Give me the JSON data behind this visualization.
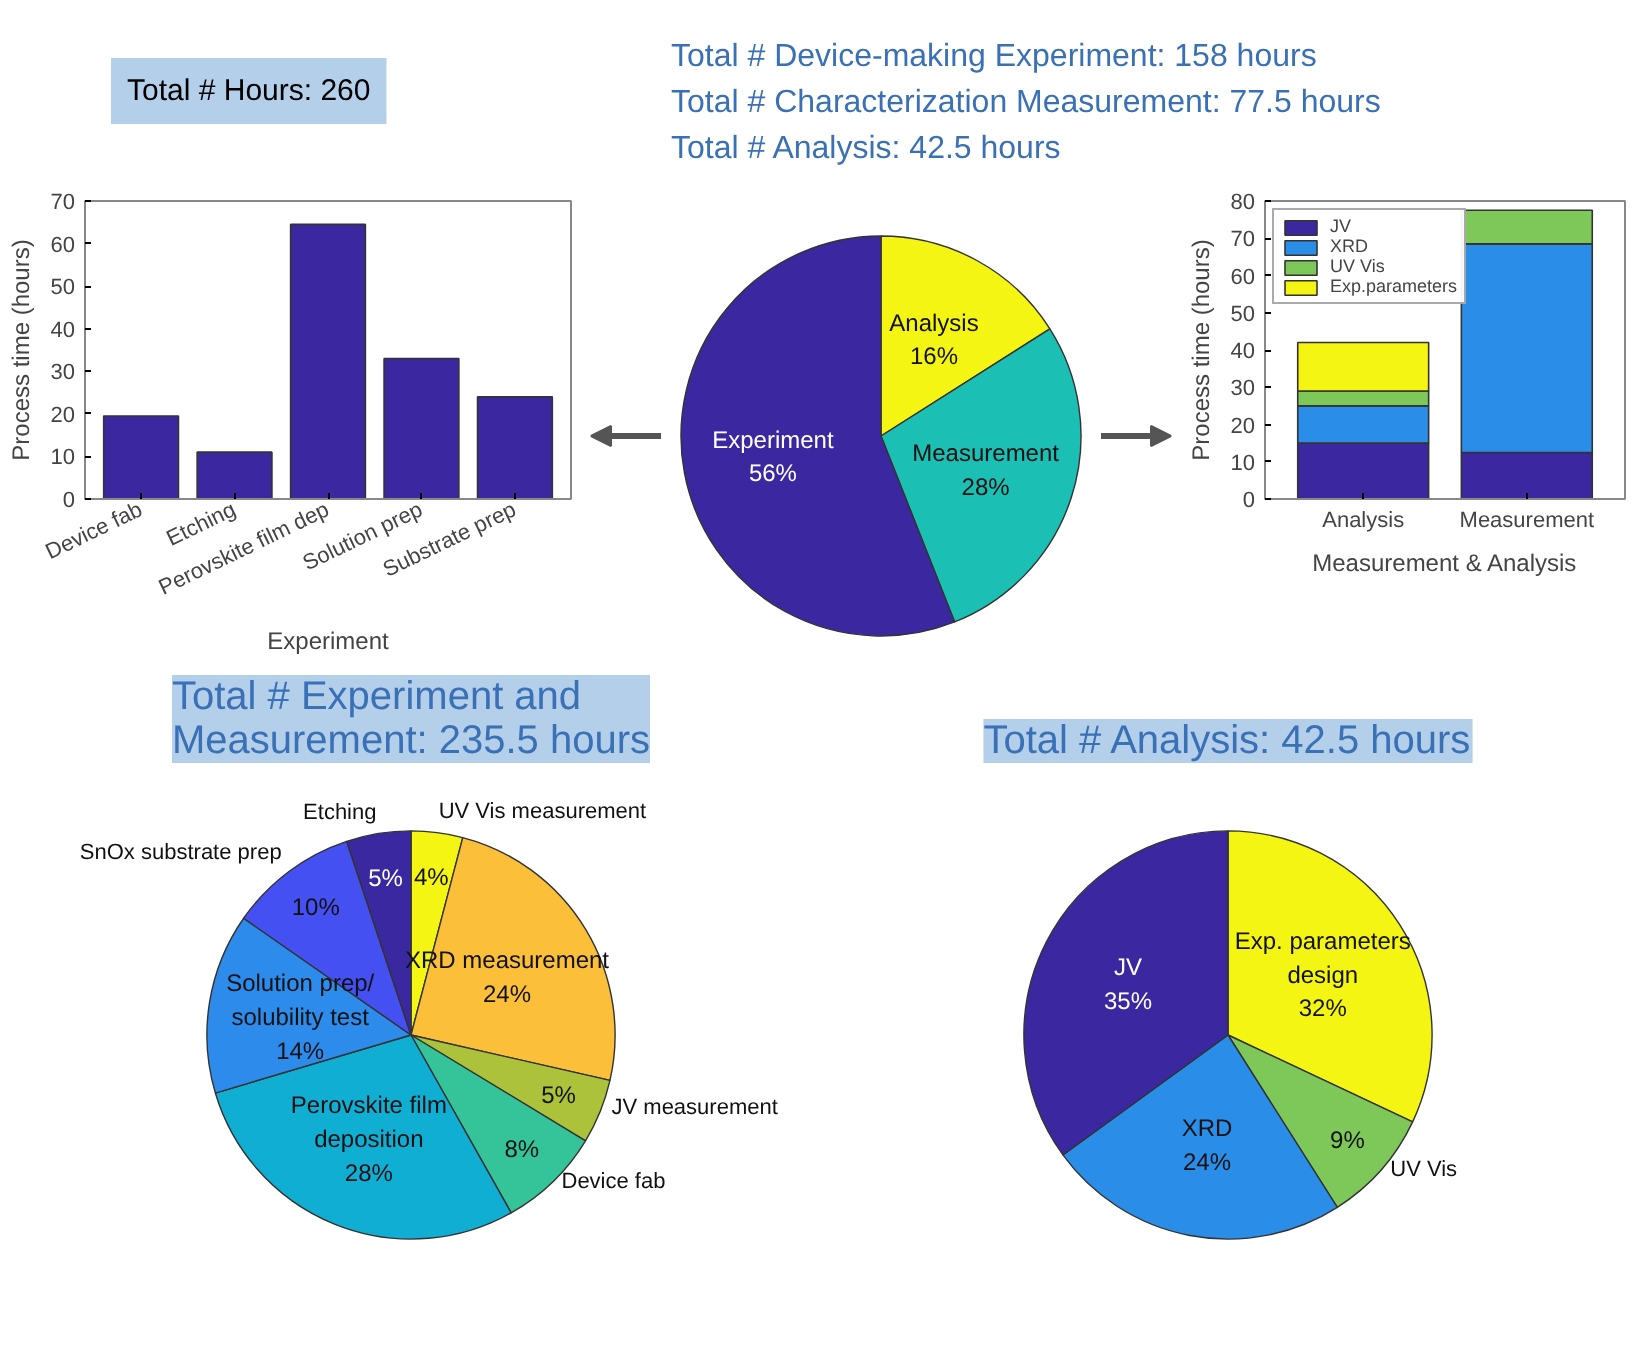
{
  "chart_data": [
    {
      "type": "other",
      "title": "Total # Hours: 260",
      "annotations": [
        "Total # Device-making Experiment: 158 hours",
        "Total # Characterization Measurement: 77.5 hours",
        "Total # Analysis: 42.5 hours"
      ]
    },
    {
      "type": "bar",
      "categories": [
        "Device fab",
        "Etching",
        "Perovskite film dep",
        "Solution prep",
        "Substrate prep"
      ],
      "values": [
        19.5,
        11,
        64.5,
        33,
        24
      ],
      "color": "#3b28a0",
      "xlabel": "Experiment",
      "ylabel": "Process time (hours)",
      "ylim": [
        0,
        70
      ],
      "yticks": [
        0,
        10,
        20,
        30,
        40,
        50,
        60,
        70
      ]
    },
    {
      "type": "pie",
      "categories": [
        "Analysis",
        "Measurement",
        "Experiment"
      ],
      "values": [
        16,
        28,
        56
      ],
      "colors": [
        "#f5f514",
        "#1bbfb3",
        "#3b28a0"
      ],
      "value_labels": [
        "16%",
        "28%",
        "56%"
      ]
    },
    {
      "type": "bar",
      "stacked": true,
      "categories": [
        "Analysis",
        "Measurement"
      ],
      "xlabel": "Measurement & Analysis",
      "ylabel": "Process time (hours)",
      "ylim": [
        0,
        80
      ],
      "yticks": [
        0,
        10,
        20,
        30,
        40,
        50,
        60,
        70,
        80
      ],
      "legend": "top left",
      "series": [
        {
          "name": "JV",
          "color": "#3b28a0",
          "values": [
            15,
            12.5
          ]
        },
        {
          "name": "XRD",
          "color": "#2a8ee8",
          "values": [
            10,
            56
          ]
        },
        {
          "name": "UV Vis",
          "color": "#7ec85a",
          "values": [
            4,
            9
          ]
        },
        {
          "name": "Exp.parameters",
          "color": "#f5f514",
          "values": [
            13,
            null
          ]
        }
      ]
    },
    {
      "type": "pie",
      "title": "Total # Experiment and Measurement: 235.5 hours",
      "categories": [
        "UV Vis measurement",
        "XRD measurement",
        "JV measurement",
        "Device fab",
        "Perovskite film deposition",
        "Solution prep/ solubility test",
        "SnOx substrate prep",
        "Etching"
      ],
      "values": [
        4,
        24,
        5,
        8,
        28,
        14,
        10,
        5
      ],
      "colors": [
        "#f5f514",
        "#fbbf3a",
        "#abc23a",
        "#35c49a",
        "#10aed3",
        "#2d8ceb",
        "#4550f2",
        "#3a28a0"
      ],
      "value_labels": [
        "4%",
        "24%",
        "5%",
        "8%",
        "28%",
        "14%",
        "10%",
        "5%"
      ]
    },
    {
      "type": "pie",
      "title": "Total # Analysis: 42.5 hours",
      "categories": [
        "Exp. parameters design",
        "UV Vis",
        "XRD",
        "JV"
      ],
      "values": [
        32,
        9,
        24,
        35
      ],
      "colors": [
        "#f5f514",
        "#7ec85a",
        "#2a8ee8",
        "#3b28a0"
      ],
      "value_labels": [
        "32%",
        "9%",
        "24%",
        "35%"
      ]
    }
  ]
}
